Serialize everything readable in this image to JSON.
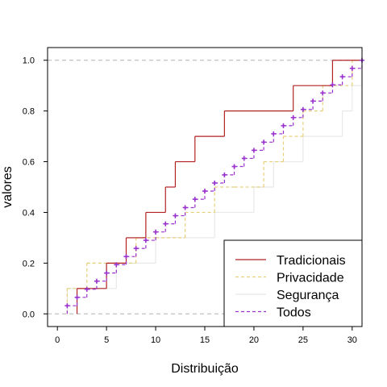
{
  "chart_data": {
    "type": "line",
    "step": true,
    "xlabel": "Distribuição",
    "ylabel": "valores",
    "xlim": [
      -1,
      31
    ],
    "ylim": [
      -0.05,
      1.05
    ],
    "x_ticks": [
      0,
      5,
      10,
      15,
      20,
      25,
      30
    ],
    "y_ticks": [
      0.0,
      0.2,
      0.4,
      0.6,
      0.8,
      1.0
    ],
    "y_tick_labels": [
      "0.0",
      "0.2",
      "0.4",
      "0.6",
      "0.8",
      "1.0"
    ],
    "reference_lines": [
      0,
      1
    ],
    "legend_position": "bottom-right",
    "series": [
      {
        "name": "Tradicionais",
        "color": "#b22222",
        "dash": "solid",
        "x": [
          2,
          3,
          5,
          7,
          8,
          9,
          11,
          12,
          14,
          17,
          24,
          26,
          28
        ],
        "y": [
          0.1,
          0.1,
          0.2,
          0.3,
          0.3,
          0.4,
          0.5,
          0.6,
          0.7,
          0.8,
          0.9,
          0.9,
          1.0
        ]
      },
      {
        "name": "Privacidade",
        "color": "#e6d07a",
        "dash": "dashed",
        "x": [
          1,
          3,
          5,
          8,
          10,
          13,
          16,
          18,
          21,
          23,
          25,
          27,
          30
        ],
        "y": [
          0.1,
          0.2,
          0.2,
          0.3,
          0.3,
          0.4,
          0.5,
          0.5,
          0.6,
          0.7,
          0.8,
          0.9,
          1.0
        ]
      },
      {
        "name": "Segurança",
        "color": "#e8e8e8",
        "dash": "solid",
        "x": [
          1,
          4,
          6,
          10,
          16,
          20,
          22,
          25,
          29,
          30,
          31
        ],
        "y": [
          0.1,
          0.1,
          0.2,
          0.3,
          0.4,
          0.5,
          0.6,
          0.7,
          0.8,
          0.9,
          1.0
        ]
      },
      {
        "name": "Todos",
        "color": "#9932cc",
        "dash": "dashed",
        "x": [
          1,
          2,
          3,
          4,
          5,
          6,
          7,
          8,
          9,
          10,
          11,
          12,
          13,
          14,
          15,
          16,
          17,
          18,
          19,
          20,
          21,
          22,
          23,
          24,
          25,
          26,
          27,
          28,
          29,
          30,
          31
        ],
        "y": [
          0.032,
          0.065,
          0.097,
          0.129,
          0.161,
          0.194,
          0.226,
          0.258,
          0.29,
          0.323,
          0.355,
          0.387,
          0.419,
          0.452,
          0.484,
          0.516,
          0.548,
          0.581,
          0.613,
          0.645,
          0.677,
          0.71,
          0.742,
          0.774,
          0.806,
          0.839,
          0.871,
          0.903,
          0.935,
          0.968,
          1.0
        ]
      }
    ]
  }
}
